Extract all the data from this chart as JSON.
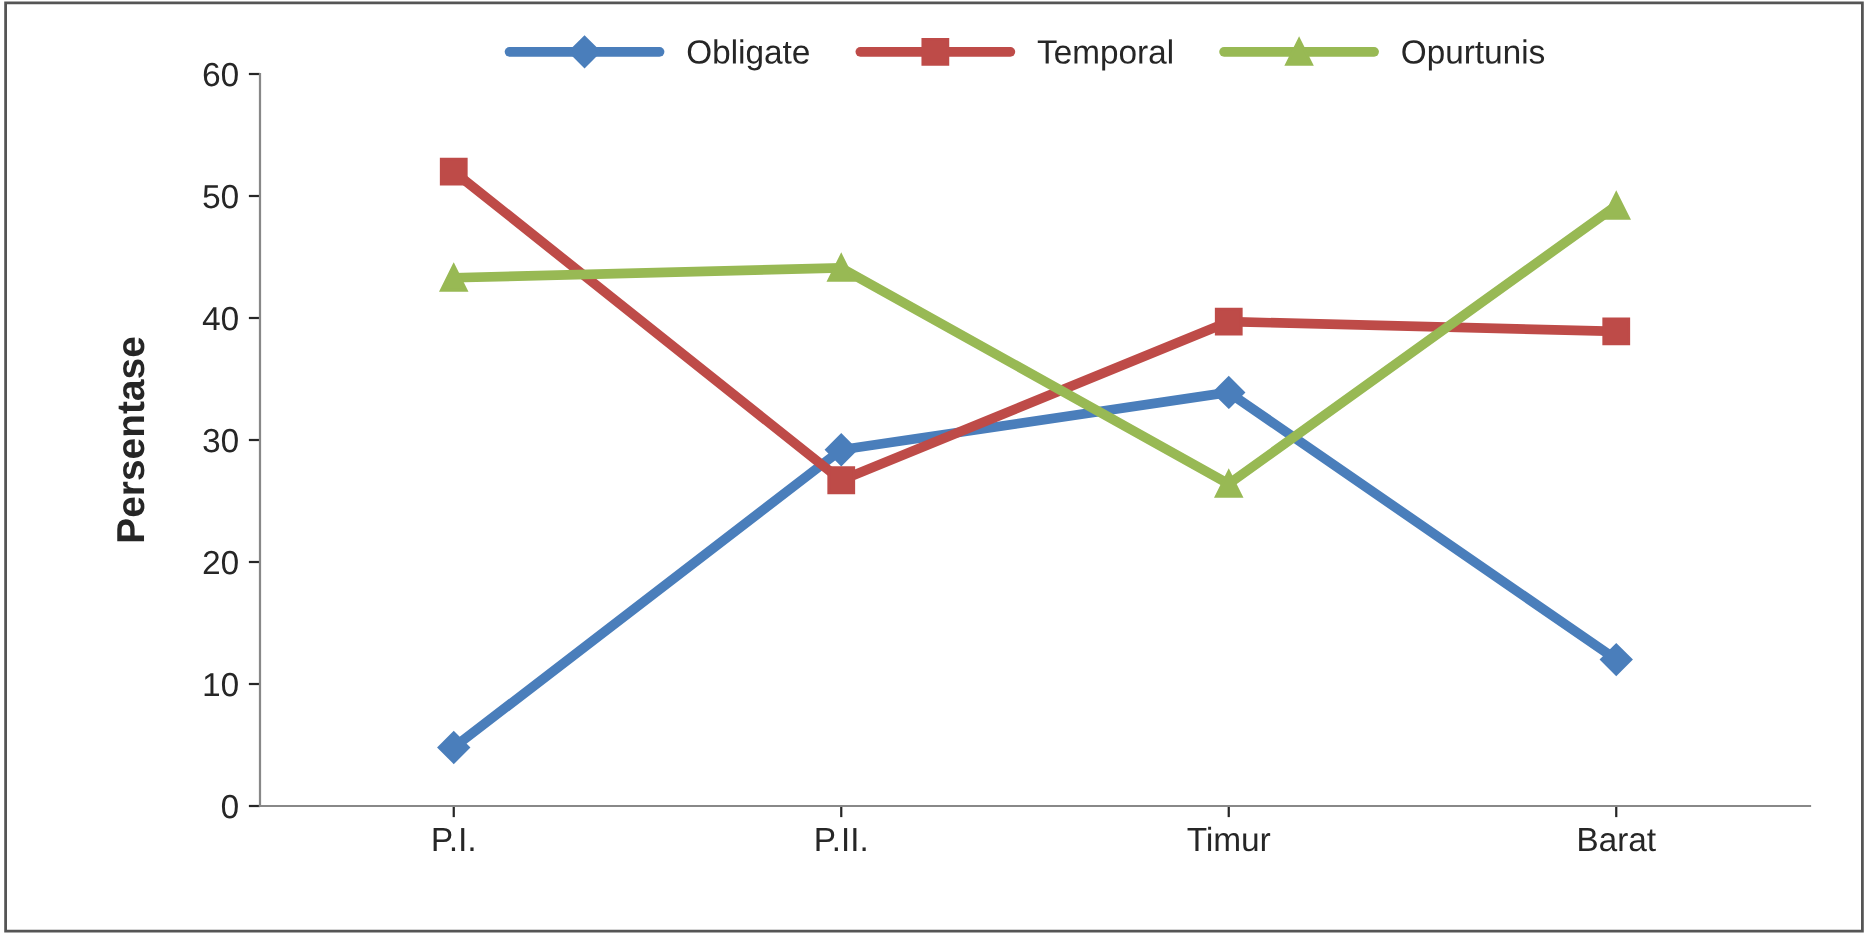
{
  "chart_data": {
    "type": "line",
    "ylabel": "Persentase",
    "categories": [
      "P.I.",
      "P.II.",
      "Timur",
      "Barat"
    ],
    "series": [
      {
        "name": "Obligate",
        "color": "#4a7ebb",
        "marker": "diamond",
        "values": [
          4.8,
          29.2,
          33.9,
          12.0
        ]
      },
      {
        "name": "Temporal",
        "color": "#be4b48",
        "marker": "square",
        "values": [
          52.0,
          26.7,
          39.7,
          38.9
        ]
      },
      {
        "name": "Opurtunis",
        "color": "#98b954",
        "marker": "triangle",
        "values": [
          43.3,
          44.1,
          26.4,
          49.2
        ]
      }
    ],
    "ylim": [
      0,
      60
    ],
    "yticks": [
      0,
      10,
      20,
      30,
      40,
      50,
      60
    ],
    "grid": false,
    "legend": "top",
    "line_style": "solid"
  }
}
